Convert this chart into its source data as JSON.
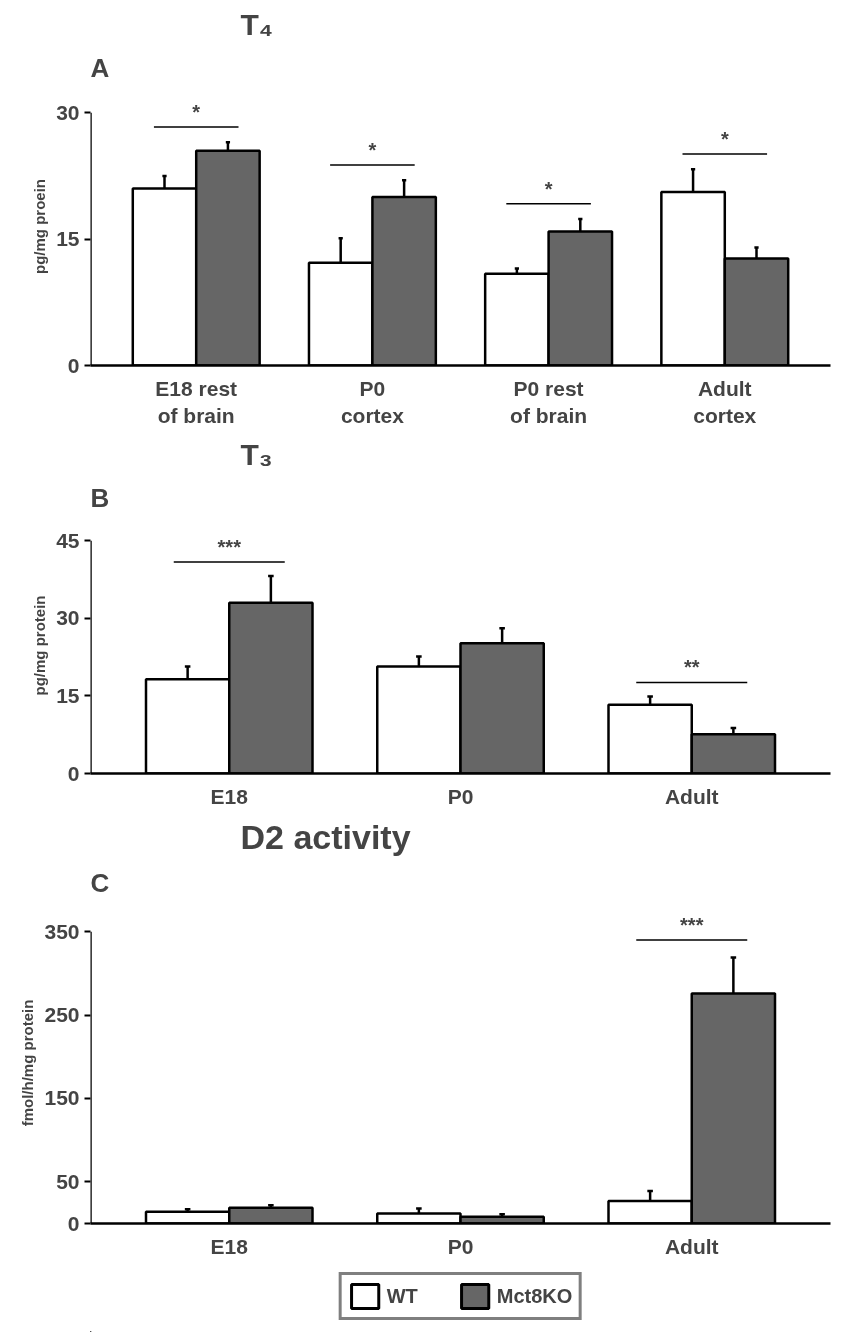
{
  "chart_data": [
    {
      "type": "bar",
      "title": "T₄",
      "ylabel": "pg/mg proein",
      "categories": [
        "E18 rest of brain",
        "P0 cortex",
        "P0 rest of brain",
        "Adult cortex"
      ],
      "ylim": [
        0,
        30
      ],
      "yticks": [
        0,
        15,
        30
      ],
      "grid": false,
      "legend": false,
      "series": [
        {
          "color": "#ffffff",
          "values": [
            21.0,
            12.2,
            10.9,
            20.6
          ],
          "errors": [
            [
              21.0,
              22.5
            ],
            [
              12.2,
              15.1
            ],
            [
              10.9,
              11.5
            ],
            [
              20.6,
              23.3
            ]
          ]
        },
        {
          "color": "#666666",
          "values": [
            25.5,
            20.0,
            15.9,
            12.7
          ],
          "errors": [
            [
              25.5,
              26.5
            ],
            [
              20.0,
              22.0
            ],
            [
              15.9,
              17.4
            ],
            [
              12.7,
              14.0
            ]
          ]
        }
      ],
      "annotations": [
        "A",
        {
          "text": "*",
          "x": "E18 rest of brain",
          "y": 25.5
        },
        {
          "text": "*",
          "x": "P0 cortex",
          "y": 20.0
        },
        {
          "text": "*",
          "x": "P0 rest of brain",
          "y": 15.9
        },
        {
          "text": "*",
          "x": "Adult cortex",
          "y": 20.6
        }
      ]
    },
    {
      "type": "bar",
      "title": "T₃",
      "ylabel": "pg/mg protein",
      "categories": [
        "E18",
        "P0",
        "Adult"
      ],
      "ylim": [
        0,
        45
      ],
      "yticks": [
        0,
        15,
        30,
        45
      ],
      "grid": false,
      "legend": false,
      "series": [
        {
          "color": "#ffffff",
          "values": [
            18.2,
            20.7,
            13.3
          ],
          "errors": [
            [
              18.2,
              20.7
            ],
            [
              20.7,
              22.6
            ],
            [
              13.3,
              14.9
            ]
          ]
        },
        {
          "color": "#666666",
          "values": [
            33.0,
            25.2,
            7.6
          ],
          "errors": [
            [
              33.0,
              38.2
            ],
            [
              25.2,
              28.1
            ],
            [
              7.6,
              8.8
            ]
          ]
        }
      ],
      "annotations": [
        "B",
        {
          "text": "***",
          "x": "E18",
          "y": 33.0
        },
        {
          "text": "**",
          "x": "Adult",
          "y": 13.3
        }
      ]
    },
    {
      "type": "bar",
      "title": "D2 activity",
      "ylabel": "fmol/h/mg protein",
      "categories": [
        "E18",
        "P0",
        "Adult"
      ],
      "ylim": [
        0,
        350
      ],
      "yticks": [
        0,
        50,
        150,
        250,
        350
      ],
      "grid": false,
      "legend": "bottom",
      "series": [
        {
          "name": "WT",
          "color": "#ffffff",
          "values": [
            14,
            12,
            27
          ],
          "errors": [
            [
              14,
              17
            ],
            [
              12,
              18
            ],
            [
              27,
              39
            ]
          ]
        },
        {
          "name": "Mct8KO",
          "color": "#666666",
          "values": [
            19,
            8,
            276
          ],
          "errors": [
            [
              19,
              22
            ],
            [
              8,
              11
            ],
            [
              276,
              319
            ]
          ]
        }
      ],
      "annotations": [
        "C",
        {
          "text": "***",
          "x": "Adult",
          "y": 276
        }
      ]
    }
  ]
}
